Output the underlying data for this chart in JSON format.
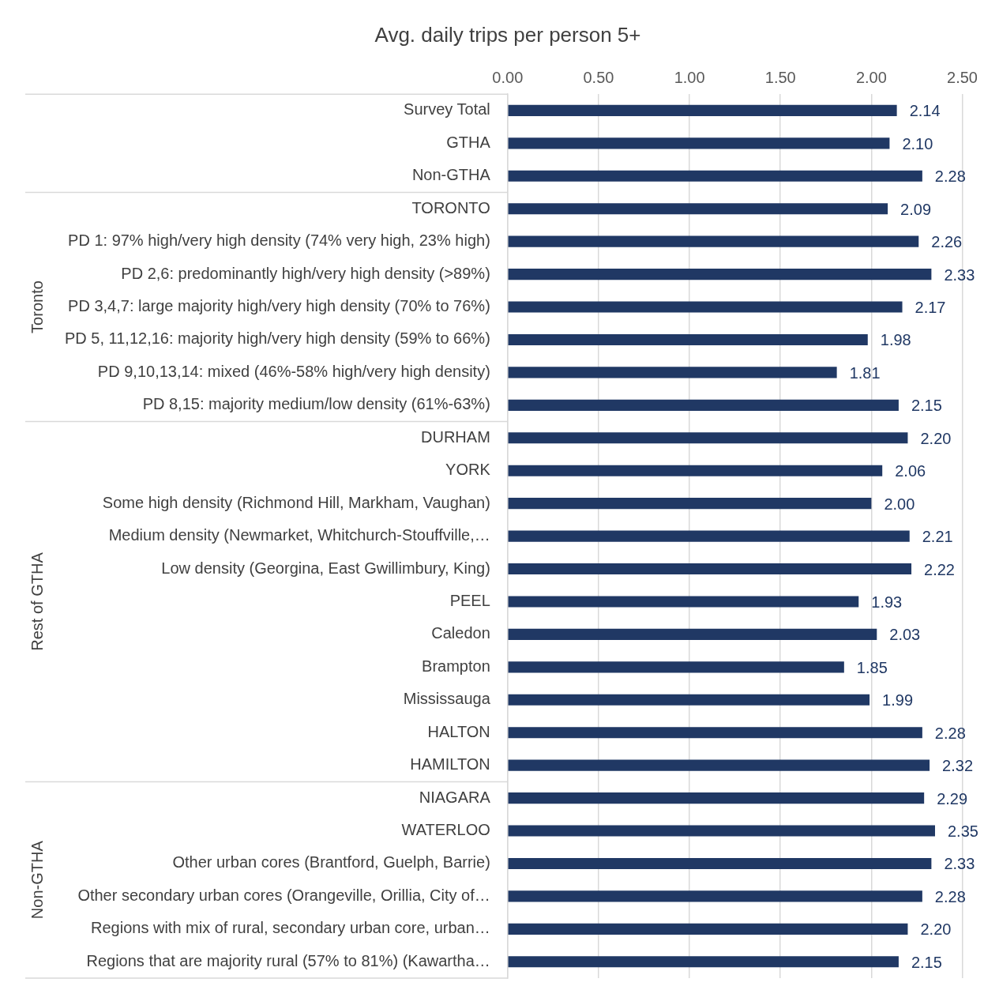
{
  "chart_data": {
    "type": "bar",
    "orientation": "horizontal",
    "title": "Avg. daily trips per person 5+",
    "categories": [
      "Survey Total",
      "GTHA",
      "Non-GTHA",
      "TORONTO",
      "PD 1: 97% high/very high density (74% very high, 23% high)",
      "PD 2,6: predominantly high/very high density (>89%)",
      "PD 3,4,7: large majority high/very high density (70% to 76%)",
      "PD 5, 11,12,16: majority high/very high density (59% to 66%)",
      "PD 9,10,13,14: mixed (46%-58% high/very high density)",
      "PD 8,15: majority medium/low density (61%-63%)",
      "DURHAM",
      "YORK",
      "Some high density (Richmond Hill, Markham, Vaughan)",
      "Medium density (Newmarket, Whitchurch-Stouffville,…",
      "Low density (Georgina, East Gwillimbury, King)",
      "PEEL",
      "Caledon",
      "Brampton",
      "Mississauga",
      "HALTON",
      "HAMILTON",
      "NIAGARA",
      "WATERLOO",
      "Other urban cores (Brantford, Guelph, Barrie)",
      "Other secondary urban cores (Orangeville, Orillia, City of…",
      "Regions with mix of rural, secondary urban core, urban…",
      "Regions that are majority rural (57% to 81%) (Kawartha…"
    ],
    "values": [
      2.14,
      2.1,
      2.28,
      2.09,
      2.26,
      2.33,
      2.17,
      1.98,
      1.81,
      2.15,
      2.2,
      2.06,
      2.0,
      2.21,
      2.22,
      1.93,
      2.03,
      1.85,
      1.99,
      2.28,
      2.32,
      2.29,
      2.35,
      2.33,
      2.28,
      2.2,
      2.15
    ],
    "value_labels": [
      "2.14",
      "2.10",
      "2.28",
      "2.09",
      "2.26",
      "2.33",
      "2.17",
      "1.98",
      "1.81",
      "2.15",
      "2.20",
      "2.06",
      "2.00",
      "2.21",
      "2.22",
      "1.93",
      "2.03",
      "1.85",
      "1.99",
      "2.28",
      "2.32",
      "2.29",
      "2.35",
      "2.33",
      "2.28",
      "2.20",
      "2.15"
    ],
    "color": "#203864",
    "xlim": [
      0,
      2.5
    ],
    "xticks": [
      {
        "value": 0,
        "label": "0.00"
      },
      {
        "value": 0.5,
        "label": "0.50"
      },
      {
        "value": 1,
        "label": "1.00"
      },
      {
        "value": 1.5,
        "label": "1.50"
      },
      {
        "value": 2,
        "label": "2.00"
      },
      {
        "value": 2.5,
        "label": "2.50"
      }
    ],
    "grid": "x",
    "annotations": [
      "Toronto",
      "Rest of GTHA",
      "Non-GTHA"
    ]
  }
}
